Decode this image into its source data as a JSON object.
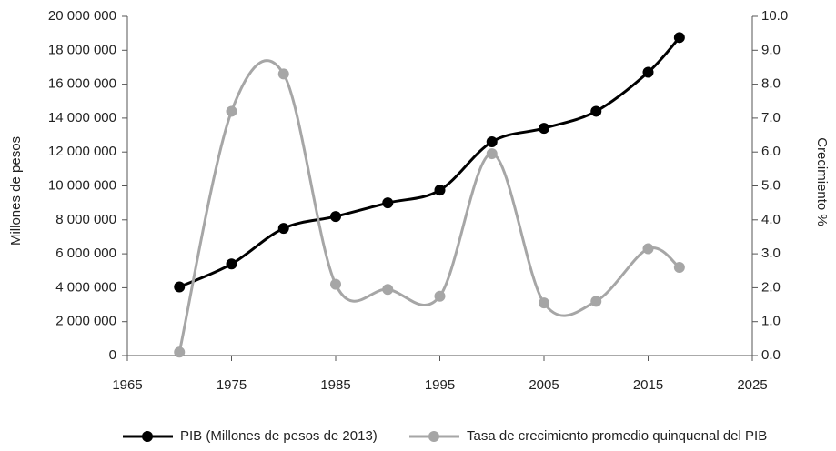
{
  "chart_data": {
    "type": "line",
    "y_label": "Millones de pesos",
    "y2_label": "Crecimiento %",
    "x": [
      1970,
      1975,
      1980,
      1985,
      1990,
      1995,
      2000,
      2005,
      2010,
      2015,
      2018
    ],
    "series": [
      {
        "name": "PIB (Millones de pesos de 2013)",
        "color": "#000000",
        "values": [
          4050000,
          5400000,
          7500000,
          8200000,
          9000000,
          9750000,
          12600000,
          13400000,
          14400000,
          16700000,
          18750000
        ]
      },
      {
        "name": "Tasa de crecimiento promedio quinquenal del PIB",
        "color": "#a6a6a6",
        "axis": "y2",
        "values": [
          0.1,
          7.2,
          8.3,
          2.1,
          1.95,
          1.75,
          5.95,
          1.55,
          1.6,
          3.15,
          2.6
        ]
      }
    ],
    "xlim": [
      1965,
      2025
    ],
    "xticks": [
      1965,
      1975,
      1985,
      1995,
      2005,
      2015,
      2025
    ],
    "ylim": [
      0,
      20000000
    ],
    "yticks": [
      0,
      {
        "value": 2000000,
        "label": "2 000 000"
      },
      {
        "value": 4000000,
        "label": "4 000 000"
      },
      {
        "value": 6000000,
        "label": "6 000 000"
      },
      {
        "value": 8000000,
        "label": "8 000 000"
      },
      {
        "value": 10000000,
        "label": "10 000 000"
      },
      {
        "value": 12000000,
        "label": "12 000 000"
      },
      {
        "value": 14000000,
        "label": "14 000 000"
      },
      {
        "value": 16000000,
        "label": "16 000 000"
      },
      {
        "value": 18000000,
        "label": "18 000 000"
      },
      {
        "value": 20000000,
        "label": "20 000 000"
      }
    ],
    "y2lim": [
      0,
      10
    ],
    "y2ticks": [
      {
        "value": 0,
        "label": "0.0"
      },
      {
        "value": 1,
        "label": "1.0"
      },
      {
        "value": 2,
        "label": "2.0"
      },
      {
        "value": 3,
        "label": "3.0"
      },
      {
        "value": 4,
        "label": "4.0"
      },
      {
        "value": 5,
        "label": "5.0"
      },
      {
        "value": 6,
        "label": "6.0"
      },
      {
        "value": 7,
        "label": "7.0"
      },
      {
        "value": 8,
        "label": "8.0"
      },
      {
        "value": 9,
        "label": "9.0"
      },
      {
        "value": 10,
        "label": "10.0"
      }
    ],
    "legend": "bottom"
  }
}
